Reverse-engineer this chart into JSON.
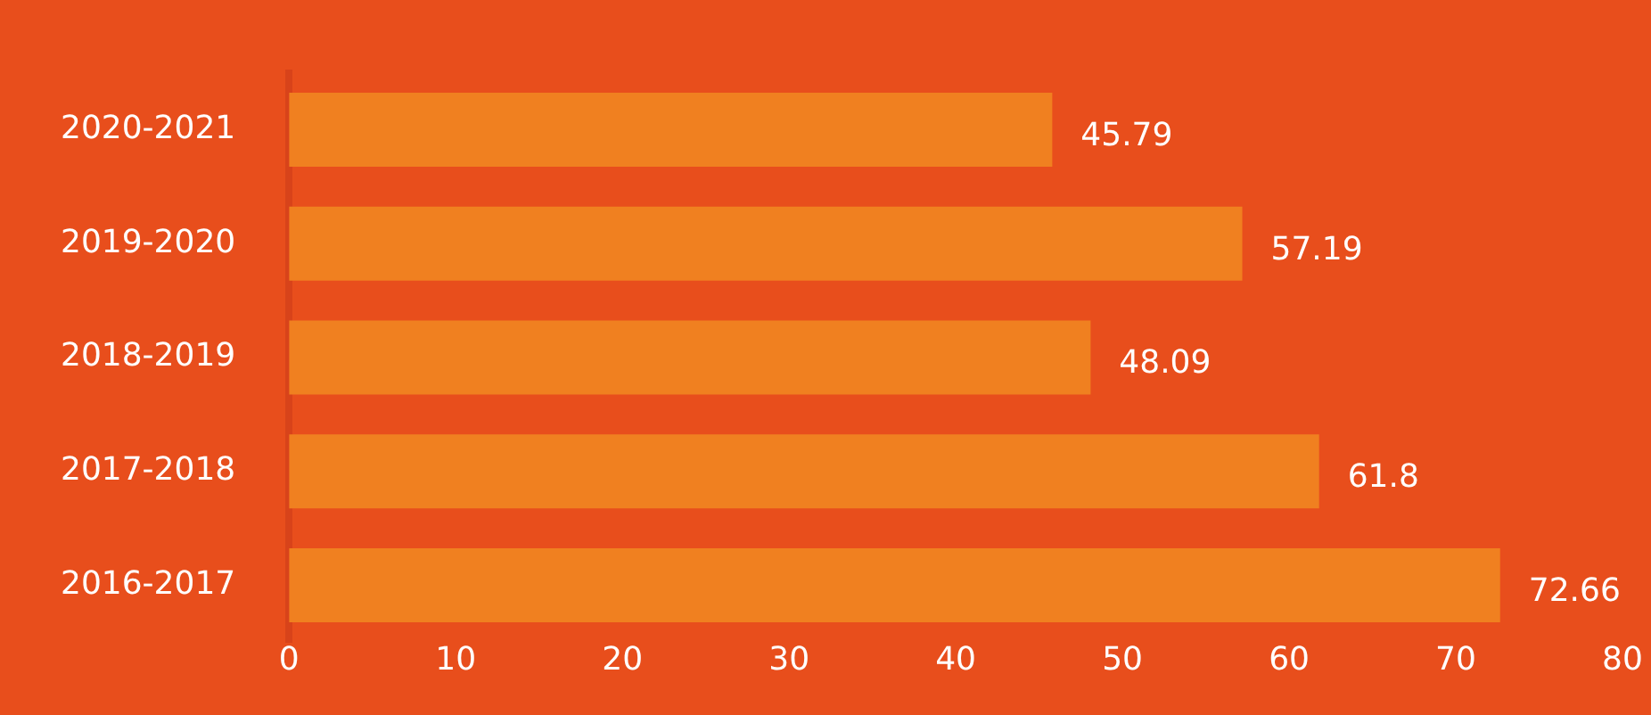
{
  "chart_data": {
    "type": "bar",
    "orientation": "horizontal",
    "categories": [
      "2020-2021",
      "2019-2020",
      "2018-2019",
      "2017-2018",
      "2016-2017"
    ],
    "values": [
      45.79,
      57.19,
      48.09,
      61.8,
      72.66
    ],
    "color": "#f08020",
    "xlim": [
      0,
      80
    ],
    "xticks": [
      0,
      10,
      20,
      30,
      40,
      50,
      60,
      70,
      80
    ],
    "grid": false,
    "legend": false,
    "data_labels": true
  }
}
